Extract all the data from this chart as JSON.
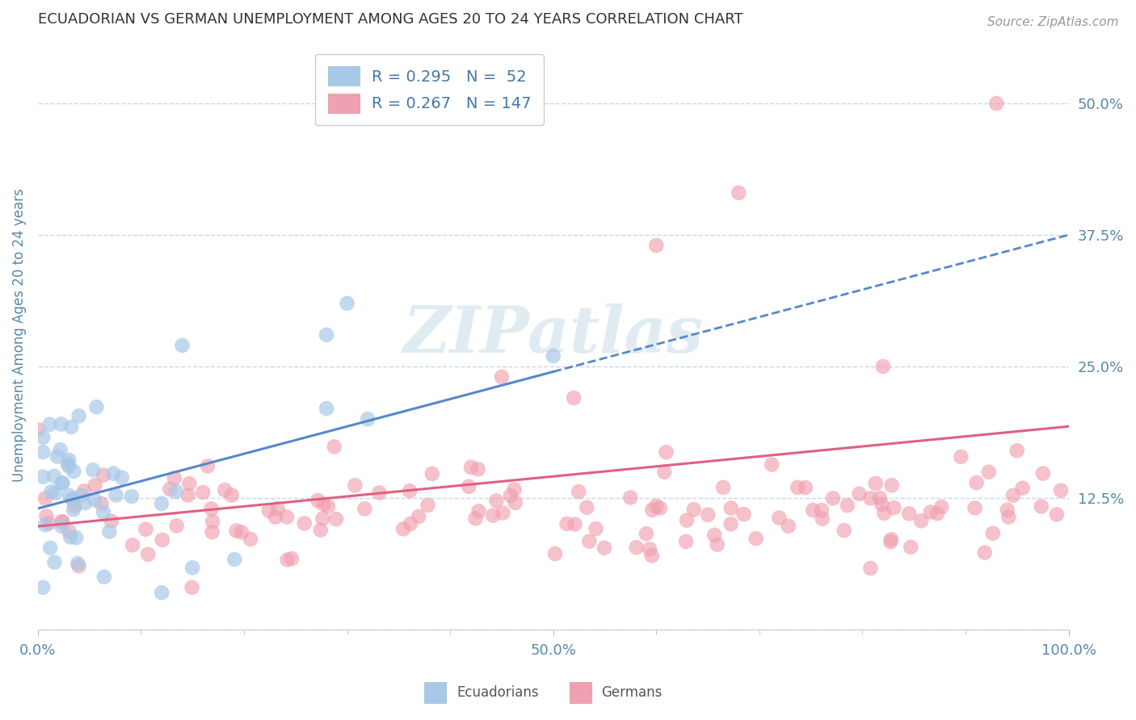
{
  "title": "ECUADORIAN VS GERMAN UNEMPLOYMENT AMONG AGES 20 TO 24 YEARS CORRELATION CHART",
  "source": "Source: ZipAtlas.com",
  "ylabel": "Unemployment Among Ages 20 to 24 years",
  "xlim": [
    0.0,
    1.0
  ],
  "ylim": [
    0.0,
    0.56
  ],
  "yticks": [
    0.0,
    0.125,
    0.25,
    0.375,
    0.5
  ],
  "ytick_labels": [
    "",
    "12.5%",
    "25.0%",
    "37.5%",
    "50.0%"
  ],
  "grid_color": "#c8d8e8",
  "background_color": "#ffffff",
  "ecuador_color": "#a8c8e8",
  "german_color": "#f0a0b0",
  "ecuador_R": 0.295,
  "ecuador_N": 52,
  "german_R": 0.267,
  "german_N": 147,
  "trend_color_ecuador": "#5588cc",
  "trend_color_german": "#e06080",
  "title_color": "#333333",
  "axis_label_color": "#5588aa",
  "tick_label_color": "#5588aa",
  "legend_text_color": "#4477aa"
}
